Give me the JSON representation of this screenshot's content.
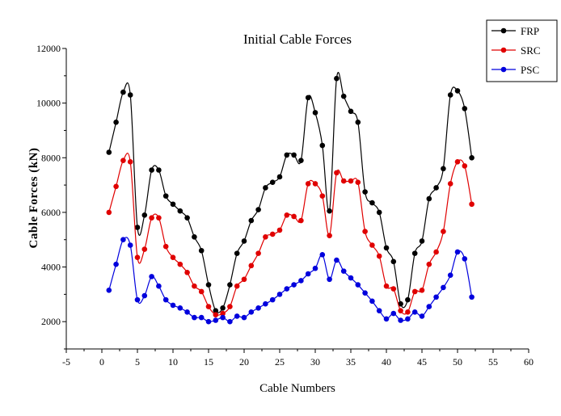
{
  "chart_data": {
    "type": "line",
    "title": "Initial Cable Forces",
    "xlabel": "Cable Numbers",
    "ylabel": "Cable Forces (kN)",
    "xlim": [
      -5,
      60
    ],
    "ylim": [
      1000,
      12000
    ],
    "x_ticks": [
      "-5",
      "0",
      "5",
      "10",
      "15",
      "20",
      "25",
      "30",
      "35",
      "40",
      "45",
      "50",
      "55",
      "60"
    ],
    "y_ticks": [
      "2000",
      "4000",
      "6000",
      "8000",
      "10000",
      "12000"
    ],
    "grid": false,
    "legend_position": "top-right",
    "x": [
      1,
      2,
      3,
      4,
      5,
      6,
      7,
      8,
      9,
      10,
      11,
      12,
      13,
      14,
      15,
      16,
      17,
      18,
      19,
      20,
      21,
      22,
      23,
      24,
      25,
      26,
      27,
      28,
      29,
      30,
      31,
      32,
      33,
      34,
      35,
      36,
      37,
      38,
      39,
      40,
      41,
      42,
      43,
      44,
      45,
      46,
      47,
      48,
      49,
      50,
      51,
      52
    ],
    "series": [
      {
        "name": "FRP",
        "color": "#000000",
        "values": [
          8200,
          9300,
          10400,
          10300,
          5450,
          5900,
          7550,
          7550,
          6600,
          6300,
          6050,
          5800,
          5100,
          4600,
          3350,
          2400,
          2500,
          3350,
          4500,
          4950,
          5700,
          6100,
          6900,
          7100,
          7300,
          8100,
          8100,
          7900,
          10200,
          9650,
          8450,
          6050,
          10900,
          10250,
          9700,
          9300,
          6750,
          6350,
          6000,
          4700,
          4200,
          2650,
          2800,
          4500,
          4950,
          6500,
          6900,
          7600,
          10300,
          10450,
          9800,
          8000
        ]
      },
      {
        "name": "SRC",
        "color": "#e00000",
        "values": [
          6000,
          6950,
          7900,
          7850,
          4350,
          4650,
          5800,
          5800,
          4750,
          4350,
          4100,
          3800,
          3300,
          3100,
          2550,
          2250,
          2300,
          2550,
          3300,
          3550,
          4050,
          4500,
          5100,
          5200,
          5350,
          5900,
          5850,
          5700,
          7050,
          7050,
          6600,
          5150,
          7450,
          7150,
          7150,
          7100,
          5300,
          4800,
          4400,
          3300,
          3200,
          2400,
          2350,
          3100,
          3150,
          4100,
          4550,
          5300,
          7050,
          7850,
          7700,
          6300
        ]
      },
      {
        "name": "PSC",
        "color": "#0000dd",
        "values": [
          3150,
          4100,
          5000,
          4800,
          2800,
          2950,
          3650,
          3300,
          2800,
          2600,
          2500,
          2350,
          2150,
          2150,
          2000,
          2050,
          2150,
          2000,
          2200,
          2150,
          2350,
          2500,
          2650,
          2800,
          3000,
          3200,
          3350,
          3500,
          3750,
          3950,
          4450,
          3550,
          4250,
          3850,
          3600,
          3350,
          3050,
          2750,
          2400,
          2100,
          2300,
          2050,
          2100,
          2350,
          2200,
          2550,
          2900,
          3250,
          3700,
          4550,
          4300,
          2900
        ]
      }
    ]
  }
}
